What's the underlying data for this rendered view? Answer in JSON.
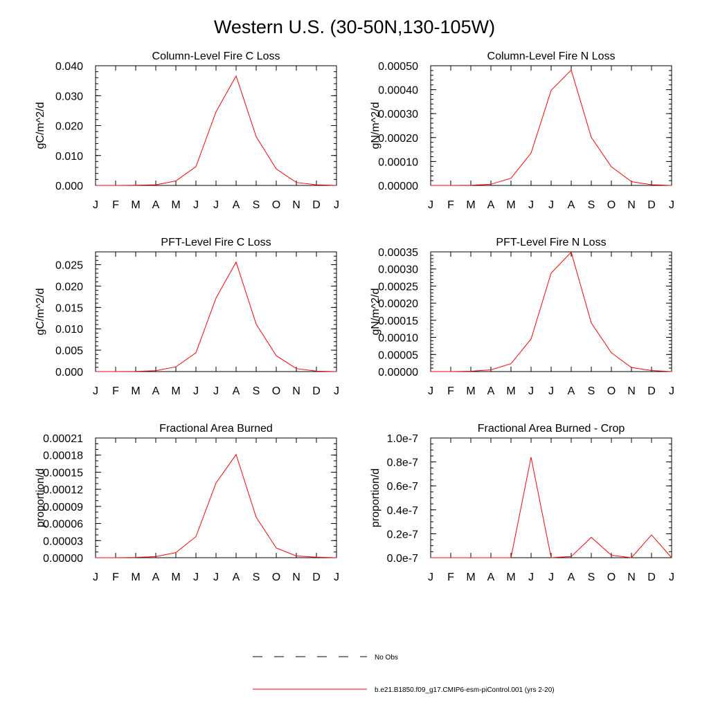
{
  "page": {
    "title": "Western U.S. (30-50N,130-105W)"
  },
  "colors": {
    "model_line": "#ff0000",
    "obs_line": "#000000",
    "axis": "#000000"
  },
  "legend": {
    "obs_label": "No Obs",
    "model_label": "b.e21.B1850.f09_g17.CMIP6-esm-piControl.001 (yrs 2-20)"
  },
  "chart_data": [
    {
      "type": "line",
      "title": "Column-Level Fire C Loss",
      "xlabel": "",
      "ylabel": "gC/m^2/d",
      "categories": [
        "J",
        "F",
        "M",
        "A",
        "M",
        "J",
        "J",
        "A",
        "S",
        "O",
        "N",
        "D",
        "J"
      ],
      "ylim": [
        0,
        0.04
      ],
      "y_ticks": [
        "0.000",
        "0.010",
        "0.020",
        "0.030",
        "0.040"
      ],
      "minor_per_major": 5,
      "series": [
        {
          "name": "b.e21.B1850.f09_g17.CMIP6-esm-piControl.001 (yrs 2-20)",
          "values": [
            0.0,
            0.0,
            5e-05,
            0.0002,
            0.0015,
            0.0063,
            0.0246,
            0.0366,
            0.0163,
            0.0055,
            0.001,
            0.0002,
            0.0
          ]
        }
      ]
    },
    {
      "type": "line",
      "title": "Column-Level Fire N Loss",
      "xlabel": "",
      "ylabel": "gN/m^2/d",
      "categories": [
        "J",
        "F",
        "M",
        "A",
        "M",
        "J",
        "J",
        "A",
        "S",
        "O",
        "N",
        "D",
        "J"
      ],
      "ylim": [
        0,
        0.0005
      ],
      "y_ticks": [
        "0.00000",
        "0.00010",
        "0.00020",
        "0.00030",
        "0.00040",
        "0.00050"
      ],
      "minor_per_major": 5,
      "series": [
        {
          "name": "b.e21.B1850.f09_g17.CMIP6-esm-piControl.001 (yrs 2-20)",
          "values": [
            0.0,
            0.0,
            1e-06,
            5e-06,
            3e-05,
            0.000135,
            0.000397,
            0.000482,
            0.000201,
            7.8e-05,
            1.6e-05,
            3e-06,
            0.0
          ]
        }
      ]
    },
    {
      "type": "line",
      "title": "PFT-Level Fire C Loss",
      "xlabel": "",
      "ylabel": "gC/m^2/d",
      "categories": [
        "J",
        "F",
        "M",
        "A",
        "M",
        "J",
        "J",
        "A",
        "S",
        "O",
        "N",
        "D",
        "J"
      ],
      "ylim": [
        0,
        0.028
      ],
      "y_ticks": [
        "0.000",
        "0.005",
        "0.010",
        "0.015",
        "0.020",
        "0.025"
      ],
      "minor_per_major": 5,
      "series": [
        {
          "name": "b.e21.B1850.f09_g17.CMIP6-esm-piControl.001 (yrs 2-20)",
          "values": [
            0.0,
            0.0,
            3e-05,
            0.0002,
            0.0011,
            0.0044,
            0.0172,
            0.0256,
            0.0111,
            0.0037,
            0.0007,
            0.0001,
            0.0
          ]
        }
      ]
    },
    {
      "type": "line",
      "title": "PFT-Level Fire N Loss",
      "xlabel": "",
      "ylabel": "gN/m^2/d",
      "categories": [
        "J",
        "F",
        "M",
        "A",
        "M",
        "J",
        "J",
        "A",
        "S",
        "O",
        "N",
        "D",
        "J"
      ],
      "ylim": [
        0,
        0.00035
      ],
      "y_ticks": [
        "0.00000",
        "0.00005",
        "0.00010",
        "0.00015",
        "0.00020",
        "0.00025",
        "0.00030",
        "0.00035"
      ],
      "minor_per_major": 5,
      "series": [
        {
          "name": "b.e21.B1850.f09_g17.CMIP6-esm-piControl.001 (yrs 2-20)",
          "values": [
            0.0,
            0.0,
            1e-06,
            5e-06,
            2.3e-05,
            9.5e-05,
            0.000288,
            0.000349,
            0.000142,
            5.5e-05,
            1.2e-05,
            3e-06,
            0.0
          ]
        }
      ]
    },
    {
      "type": "line",
      "title": "Fractional Area Burned",
      "xlabel": "",
      "ylabel": "proportion/d",
      "categories": [
        "J",
        "F",
        "M",
        "A",
        "M",
        "J",
        "J",
        "A",
        "S",
        "O",
        "N",
        "D",
        "J"
      ],
      "ylim": [
        0,
        0.00021
      ],
      "y_ticks": [
        "0.00000",
        "0.00003",
        "0.00006",
        "0.00009",
        "0.00012",
        "0.00015",
        "0.00018",
        "0.00021"
      ],
      "minor_per_major": 3,
      "series": [
        {
          "name": "b.e21.B1850.f09_g17.CMIP6-esm-piControl.001 (yrs 2-20)",
          "values": [
            0.0,
            0.0,
            5e-07,
            2e-06,
            9e-06,
            3.7e-05,
            0.000131,
            0.000181,
            7.1e-05,
            1.7e-05,
            3e-06,
            1e-06,
            0.0
          ]
        }
      ]
    },
    {
      "type": "line",
      "title": "Fractional Area Burned - Crop",
      "xlabel": "",
      "ylabel": "proportion/d",
      "categories": [
        "J",
        "F",
        "M",
        "A",
        "M",
        "J",
        "J",
        "A",
        "S",
        "O",
        "N",
        "D",
        "J"
      ],
      "ylim": [
        0,
        1e-07
      ],
      "y_ticks": [
        "0.0e-7",
        "0.2e-7",
        "0.4e-7",
        "0.6e-7",
        "0.8e-7",
        "1.0e-7"
      ],
      "minor_per_major": 4,
      "series": [
        {
          "name": "b.e21.B1850.f09_g17.CMIP6-esm-piControl.001 (yrs 2-20)",
          "values": [
            0.0,
            0.0,
            0.0,
            0.0,
            0.0,
            8.4e-08,
            0.0,
            1e-09,
            1.7e-08,
            2e-09,
            0.0,
            1.9e-08,
            0.0
          ]
        }
      ]
    }
  ]
}
